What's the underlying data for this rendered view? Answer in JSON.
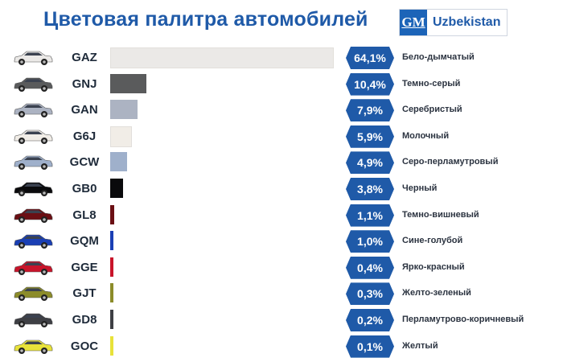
{
  "header": {
    "title": "Цветовая палитра автомобилей",
    "logo_gm": "GM",
    "logo_text": "Uzbekistan"
  },
  "colors": {
    "brand": "#1f5aa8",
    "logo": "#1c64b8"
  },
  "chart_data": {
    "type": "bar",
    "orientation": "horizontal",
    "title": "Цветовая палитра автомобилей",
    "unit": "%",
    "categories": [
      "GAZ",
      "GNJ",
      "GAN",
      "G6J",
      "GCW",
      "GB0",
      "GL8",
      "GQM",
      "GGE",
      "GJT",
      "GD8",
      "GOC"
    ],
    "values": [
      64.1,
      10.4,
      7.9,
      5.9,
      4.9,
      3.8,
      1.1,
      1.0,
      0.4,
      0.3,
      0.2,
      0.1
    ],
    "value_labels": [
      "64,1%",
      "10,4%",
      "7,9%",
      "5,9%",
      "4,9%",
      "3,8%",
      "1,1%",
      "1,0%",
      "0,4%",
      "0,3%",
      "0,2%",
      "0,1%"
    ],
    "color_names": [
      "Бело-дымчатый",
      "Темно-серый",
      "Серебристый",
      "Молочный",
      "Серо-перламутровый",
      "Черный",
      "Темно-вишневый",
      "Сине-голубой",
      "Ярко-красный",
      "Желто-зеленый",
      "Перламутрово-коричневый",
      "Желтый"
    ],
    "bar_colors": [
      "#ebe9e7",
      "#5a5b5c",
      "#acb3c2",
      "#f1ede7",
      "#9fb0cb",
      "#0a0a0c",
      "#6b0f14",
      "#1a3fb4",
      "#c8142a",
      "#8c8c2a",
      "#3e3f44",
      "#e8e23a"
    ],
    "grid": false,
    "legend": "none"
  }
}
